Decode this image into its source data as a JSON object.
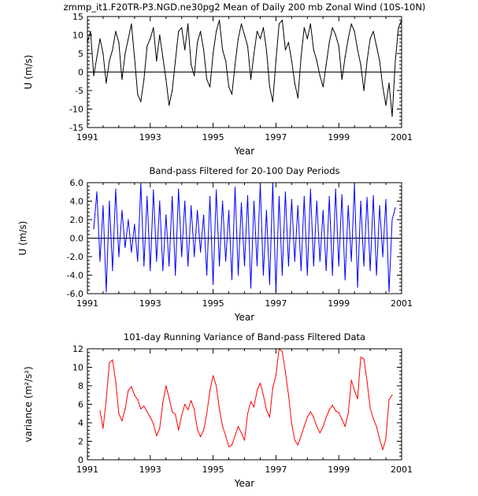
{
  "chart_data": [
    {
      "type": "line",
      "title": "zmmp_it1.F20TR-P3.NGD.ne30pg2 Mean of Daily 200 mb Zonal Wind (10S-10N)",
      "xlabel": "Year",
      "ylabel": "U (m/s)",
      "xlim": [
        1991,
        2001
      ],
      "ylim": [
        -15,
        15
      ],
      "xticks": [
        1991,
        1993,
        1995,
        1997,
        1999,
        2001
      ],
      "yticks": [
        -15,
        -10,
        -5,
        0,
        5,
        10,
        15
      ],
      "ytick_labels": [
        "-15",
        "-10",
        "-5",
        "0",
        "5",
        "10",
        "15"
      ],
      "zero_line": true,
      "color": "#000000",
      "series": [
        {
          "name": "daily zonal wind",
          "x": [
            1991.0,
            1991.1,
            1991.2,
            1991.3,
            1991.4,
            1991.5,
            1991.6,
            1991.7,
            1991.8,
            1991.9,
            1992.0,
            1992.1,
            1992.2,
            1992.3,
            1992.4,
            1992.5,
            1992.6,
            1992.7,
            1992.8,
            1992.9,
            1993.0,
            1993.1,
            1993.2,
            1993.3,
            1993.4,
            1993.5,
            1993.6,
            1993.7,
            1993.8,
            1993.9,
            1994.0,
            1994.1,
            1994.2,
            1994.3,
            1994.4,
            1994.5,
            1994.6,
            1994.7,
            1994.8,
            1994.9,
            1995.0,
            1995.1,
            1995.2,
            1995.3,
            1995.4,
            1995.5,
            1995.6,
            1995.7,
            1995.8,
            1995.9,
            1996.0,
            1996.1,
            1996.2,
            1996.3,
            1996.4,
            1996.5,
            1996.6,
            1996.7,
            1996.8,
            1996.9,
            1997.0,
            1997.1,
            1997.2,
            1997.3,
            1997.4,
            1997.5,
            1997.6,
            1997.7,
            1997.8,
            1997.9,
            1998.0,
            1998.1,
            1998.2,
            1998.3,
            1998.4,
            1998.5,
            1998.6,
            1998.7,
            1998.8,
            1998.9,
            1999.0,
            1999.1,
            1999.2,
            1999.3,
            1999.4,
            1999.5,
            1999.6,
            1999.7,
            1999.8,
            1999.9,
            2000.0,
            2000.1,
            2000.2,
            2000.3,
            2000.4,
            2000.5,
            2000.6,
            2000.7,
            2000.8,
            2000.9,
            2001.0
          ],
          "values": [
            8,
            11,
            -1,
            4,
            9,
            5,
            -3,
            3,
            6,
            11,
            8,
            -2,
            5,
            9,
            13,
            4,
            -6,
            -8,
            -2,
            7,
            9,
            12,
            3,
            10,
            4,
            -2,
            -9,
            -5,
            3,
            11,
            12,
            6,
            13,
            2,
            -1,
            8,
            11,
            6,
            -2,
            -4,
            5,
            11,
            14,
            6,
            3,
            -4,
            -6,
            2,
            9,
            13,
            10,
            7,
            -2,
            5,
            11,
            9,
            12,
            6,
            -4,
            -8,
            3,
            13,
            14,
            6,
            8,
            3,
            -3,
            -7,
            4,
            12,
            9,
            13,
            6,
            3,
            -1,
            -4,
            2,
            8,
            12,
            10,
            7,
            -2,
            4,
            9,
            13,
            11,
            6,
            2,
            -5,
            3,
            9,
            11,
            7,
            3,
            -4,
            -9,
            -3,
            -12,
            3,
            12,
            14
          ]
        }
      ]
    },
    {
      "type": "line",
      "title": "Band-pass Filtered for 20-100 Day Periods",
      "xlabel": "Year",
      "ylabel": "U (m/s)",
      "xlim": [
        1991,
        2001
      ],
      "ylim": [
        -6,
        6
      ],
      "xticks": [
        1991,
        1993,
        1995,
        1997,
        1999,
        2001
      ],
      "yticks": [
        -6,
        -4,
        -2,
        0,
        2,
        4,
        6
      ],
      "ytick_labels": [
        "-6.0",
        "-4.0",
        "-2.0",
        "0.0",
        "2.0",
        "4.0",
        "6.0"
      ],
      "zero_line": true,
      "color": "#0000ff",
      "series": [
        {
          "name": "band-pass filtered wind",
          "x": [
            1991.2,
            1991.3,
            1991.4,
            1991.5,
            1991.6,
            1991.7,
            1991.8,
            1991.9,
            1992.0,
            1992.1,
            1992.2,
            1992.3,
            1992.4,
            1992.5,
            1992.6,
            1992.7,
            1992.8,
            1992.9,
            1993.0,
            1993.1,
            1993.2,
            1993.3,
            1993.4,
            1993.5,
            1993.6,
            1993.7,
            1993.8,
            1993.9,
            1994.0,
            1994.1,
            1994.2,
            1994.3,
            1994.4,
            1994.5,
            1994.6,
            1994.7,
            1994.8,
            1994.9,
            1995.0,
            1995.1,
            1995.2,
            1995.3,
            1995.4,
            1995.5,
            1995.6,
            1995.7,
            1995.8,
            1995.9,
            1996.0,
            1996.1,
            1996.2,
            1996.3,
            1996.4,
            1996.5,
            1996.6,
            1996.7,
            1996.8,
            1996.9,
            1997.0,
            1997.1,
            1997.2,
            1997.3,
            1997.4,
            1997.5,
            1997.6,
            1997.7,
            1997.8,
            1997.9,
            1998.0,
            1998.1,
            1998.2,
            1998.3,
            1998.4,
            1998.5,
            1998.6,
            1998.7,
            1998.8,
            1998.9,
            1999.0,
            1999.1,
            1999.2,
            1999.3,
            1999.4,
            1999.5,
            1999.6,
            1999.7,
            1999.8,
            1999.9,
            2000.0,
            2000.1,
            2000.2,
            2000.3,
            2000.4,
            2000.5,
            2000.6,
            2000.7,
            2000.8
          ],
          "values": [
            1,
            5,
            -2.5,
            3.5,
            -5.8,
            4,
            -3.5,
            5.3,
            -2,
            3,
            -1,
            2,
            -1.5,
            1.5,
            -2.5,
            5.9,
            -3,
            4.5,
            -3.5,
            5.2,
            -2.5,
            4,
            -3.5,
            2.5,
            -3,
            4.5,
            -4,
            5.3,
            -2,
            4,
            -3,
            3.5,
            -2,
            3,
            -1.5,
            2.5,
            -4,
            4.5,
            -5,
            5.2,
            -3,
            4,
            -2.5,
            3,
            -4.5,
            5.5,
            -4,
            3.8,
            -3,
            4.6,
            -5.4,
            4,
            -3,
            5.9,
            -4,
            3,
            -5,
            6,
            -5.8,
            4.5,
            -4,
            5,
            -3,
            4.2,
            -2.5,
            3.5,
            -3.5,
            4.5,
            -4,
            5.3,
            -3,
            4,
            -2.5,
            3,
            -3.5,
            4.5,
            -4,
            5.3,
            -3,
            4.7,
            -4.5,
            3.5,
            -2.5,
            5.8,
            -5.3,
            4,
            -3,
            4.4,
            -3.5,
            4.6,
            -4,
            3.5,
            -2,
            4.2,
            -5.8,
            2,
            3.3
          ]
        }
      ]
    },
    {
      "type": "line",
      "title": "101-day Running Variance of Band-pass Filtered Data",
      "xlabel": "Year",
      "ylabel": "variance (m²/s²)",
      "xlim": [
        1991,
        2001
      ],
      "ylim": [
        0,
        12
      ],
      "xticks": [
        1991,
        1993,
        1995,
        1997,
        1999,
        2001
      ],
      "yticks": [
        0,
        2,
        4,
        6,
        8,
        10,
        12
      ],
      "ytick_labels": [
        "0",
        "2",
        "4",
        "6",
        "8",
        "10",
        "12"
      ],
      "zero_line": false,
      "color": "#ff0000",
      "series": [
        {
          "name": "running variance",
          "x": [
            1991.4,
            1991.5,
            1991.6,
            1991.7,
            1991.8,
            1991.9,
            1992.0,
            1992.1,
            1992.2,
            1992.3,
            1992.4,
            1992.5,
            1992.6,
            1992.7,
            1992.8,
            1992.9,
            1993.0,
            1993.1,
            1993.2,
            1993.3,
            1993.4,
            1993.5,
            1993.6,
            1993.7,
            1993.8,
            1993.9,
            1994.0,
            1994.1,
            1994.2,
            1994.3,
            1994.4,
            1994.5,
            1994.6,
            1994.7,
            1994.8,
            1994.9,
            1995.0,
            1995.1,
            1995.2,
            1995.3,
            1995.4,
            1995.5,
            1995.6,
            1995.7,
            1995.8,
            1995.9,
            1996.0,
            1996.1,
            1996.2,
            1996.3,
            1996.4,
            1996.5,
            1996.6,
            1996.7,
            1996.8,
            1996.9,
            1997.0,
            1997.1,
            1997.2,
            1997.3,
            1997.4,
            1997.5,
            1997.6,
            1997.7,
            1997.8,
            1997.9,
            1998.0,
            1998.1,
            1998.2,
            1998.3,
            1998.4,
            1998.5,
            1998.6,
            1998.7,
            1998.8,
            1998.9,
            1999.0,
            1999.1,
            1999.2,
            1999.3,
            1999.4,
            1999.5,
            1999.6,
            1999.7,
            1999.8,
            1999.9,
            2000.0,
            2000.1,
            2000.2,
            2000.3,
            2000.4,
            2000.5,
            2000.6,
            2000.7
          ],
          "values": [
            5.3,
            3.4,
            6.5,
            10.5,
            10.8,
            8.5,
            5.0,
            4.2,
            5.5,
            7.5,
            7.9,
            7.0,
            6.5,
            5.5,
            5.8,
            5.2,
            4.6,
            3.9,
            2.6,
            3.4,
            6.2,
            8.0,
            6.7,
            5.2,
            4.9,
            3.2,
            4.8,
            6.0,
            5.4,
            6.4,
            5.4,
            3.3,
            2.5,
            3.2,
            5.0,
            7.5,
            9.1,
            8.0,
            5.5,
            3.6,
            2.6,
            1.4,
            1.6,
            2.6,
            3.6,
            2.9,
            2.1,
            5.0,
            6.3,
            5.7,
            7.5,
            8.3,
            7.0,
            5.4,
            4.6,
            7.8,
            9.1,
            12.0,
            11.7,
            9.5,
            7.0,
            3.9,
            2.1,
            1.6,
            2.6,
            3.6,
            4.6,
            5.2,
            4.6,
            3.6,
            2.9,
            3.6,
            4.6,
            5.4,
            5.9,
            5.3,
            5.1,
            4.4,
            3.6,
            5.0,
            8.6,
            7.5,
            6.6,
            11.1,
            10.9,
            8.5,
            5.6,
            4.4,
            3.6,
            2.2,
            1.1,
            2.3,
            6.5,
            7.0
          ]
        }
      ]
    }
  ]
}
